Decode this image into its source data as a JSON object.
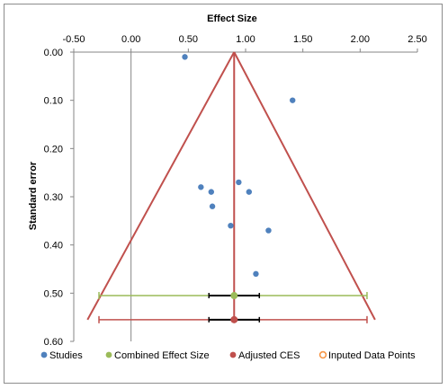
{
  "chart_data": {
    "type": "scatter",
    "xlabel": "Effect Size",
    "ylabel": "Standard error",
    "xlim": [
      -0.5,
      2.5
    ],
    "ylim": [
      0.0,
      0.6
    ],
    "y_inverted": true,
    "x_axis_position": "top",
    "grid": false,
    "x_ticks": [
      "-0.50",
      "0.00",
      "0.50",
      "1.00",
      "1.50",
      "2.00",
      "2.50"
    ],
    "x_tick_values": [
      -0.5,
      0.0,
      0.5,
      1.0,
      1.5,
      2.0,
      2.5
    ],
    "y_ticks": [
      "0.00",
      "0.10",
      "0.20",
      "0.30",
      "0.40",
      "0.50",
      "0.60"
    ],
    "y_tick_values": [
      0.0,
      0.1,
      0.2,
      0.3,
      0.4,
      0.5,
      0.6
    ],
    "studies": [
      {
        "x": 0.47,
        "y": 0.01
      },
      {
        "x": 1.41,
        "y": 0.1
      },
      {
        "x": 0.94,
        "y": 0.27
      },
      {
        "x": 0.61,
        "y": 0.28
      },
      {
        "x": 0.7,
        "y": 0.29
      },
      {
        "x": 1.03,
        "y": 0.29
      },
      {
        "x": 0.71,
        "y": 0.32
      },
      {
        "x": 0.87,
        "y": 0.36
      },
      {
        "x": 1.2,
        "y": 0.37
      },
      {
        "x": 1.09,
        "y": 0.46
      }
    ],
    "combined_effect_size": {
      "x": 0.9,
      "y": 0.505,
      "ci_inner": [
        0.68,
        1.12
      ],
      "ci_outer": [
        -0.28,
        2.06
      ]
    },
    "adjusted_ces": {
      "x": 0.9,
      "y": 0.555,
      "ci_inner": [
        0.68,
        1.12
      ],
      "ci_outer": [
        -0.28,
        2.06
      ]
    },
    "funnel": {
      "apex": [
        0.9,
        0.0
      ],
      "base_left": [
        -0.38,
        0.555
      ],
      "base_right": [
        2.13,
        0.555
      ]
    },
    "vertical_line_x": 0.9,
    "legend_position": "bottom",
    "legend": [
      {
        "name": "Studies",
        "color": "#4f81bd",
        "marker": "filled"
      },
      {
        "name": "Combined Effect Size",
        "color": "#9bbb59",
        "marker": "filled"
      },
      {
        "name": "Adjusted CES",
        "color": "#c0504d",
        "marker": "filled"
      },
      {
        "name": "Inputed Data Points",
        "color": "#f79646",
        "marker": "hollow"
      }
    ],
    "colors": {
      "studies": "#4f81bd",
      "combined": "#9bbb59",
      "adjusted": "#c0504d",
      "imputed": "#f79646",
      "funnel": "#c0504d",
      "axis": "#868686",
      "ci_inner": "#000000"
    }
  }
}
